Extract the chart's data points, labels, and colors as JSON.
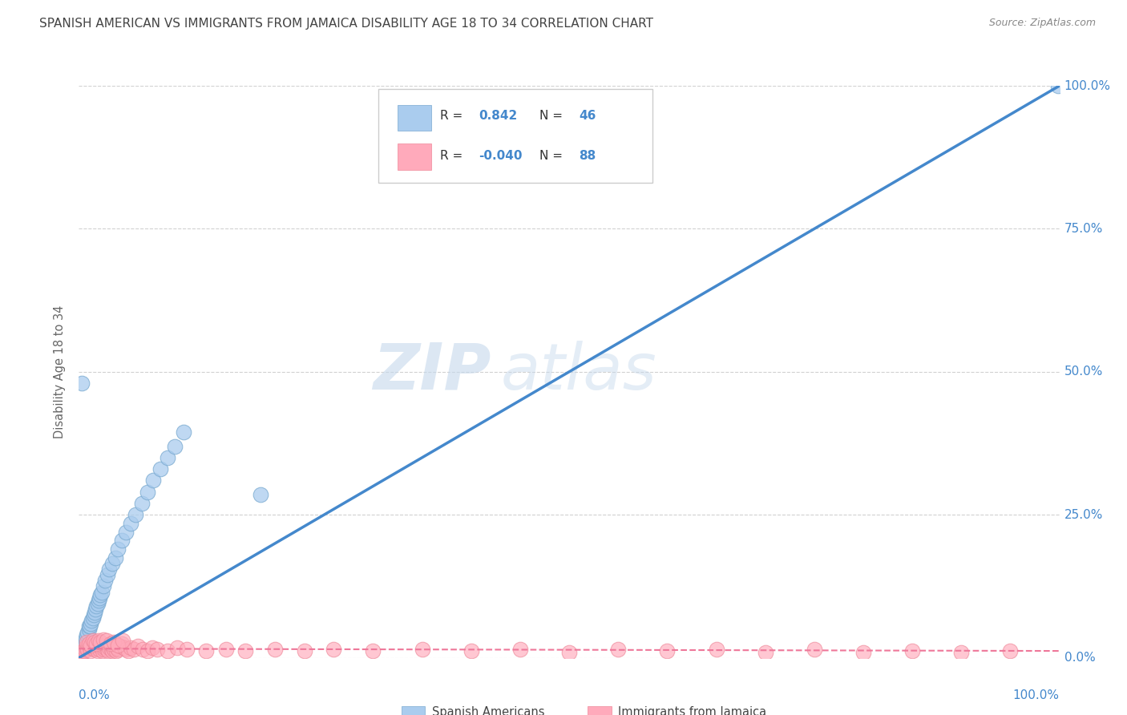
{
  "title": "SPANISH AMERICAN VS IMMIGRANTS FROM JAMAICA DISABILITY AGE 18 TO 34 CORRELATION CHART",
  "source": "Source: ZipAtlas.com",
  "ylabel": "Disability Age 18 to 34",
  "ytick_labels": [
    "0.0%",
    "25.0%",
    "50.0%",
    "75.0%",
    "100.0%"
  ],
  "ytick_values": [
    0.0,
    0.25,
    0.5,
    0.75,
    1.0
  ],
  "watermark_zip": "ZIP",
  "watermark_atlas": "atlas",
  "legend_r1_text": "R = ",
  "legend_r1_val": "0.842",
  "legend_n1_text": "N = ",
  "legend_n1_val": "46",
  "legend_r2_text": "R = ",
  "legend_r2_val": "-0.040",
  "legend_n2_text": "N = ",
  "legend_n2_val": "88",
  "blue_fill": "#AACCEE",
  "blue_edge": "#7AAAD0",
  "pink_fill": "#FFAABB",
  "pink_edge": "#EE8899",
  "blue_line_color": "#4488CC",
  "pink_line_color": "#EE7799",
  "axis_label_color": "#4488CC",
  "title_color": "#444444",
  "source_color": "#888888",
  "grid_color": "#CCCCCC",
  "background_color": "#FFFFFF",
  "legend_text_dark": "#333333",
  "legend_text_blue": "#4488CC",
  "blue_scatter_x": [
    0.002,
    0.003,
    0.004,
    0.005,
    0.005,
    0.006,
    0.007,
    0.007,
    0.008,
    0.009,
    0.01,
    0.01,
    0.011,
    0.012,
    0.013,
    0.014,
    0.015,
    0.016,
    0.017,
    0.018,
    0.019,
    0.02,
    0.021,
    0.022,
    0.023,
    0.025,
    0.027,
    0.029,
    0.031,
    0.034,
    0.037,
    0.04,
    0.044,
    0.048,
    0.053,
    0.058,
    0.064,
    0.07,
    0.076,
    0.083,
    0.09,
    0.098,
    0.107,
    0.185,
    0.003,
    0.999
  ],
  "blue_scatter_y": [
    0.005,
    0.01,
    0.015,
    0.02,
    0.025,
    0.025,
    0.03,
    0.035,
    0.04,
    0.045,
    0.05,
    0.055,
    0.055,
    0.06,
    0.065,
    0.07,
    0.075,
    0.08,
    0.085,
    0.09,
    0.095,
    0.1,
    0.105,
    0.11,
    0.115,
    0.125,
    0.135,
    0.145,
    0.155,
    0.165,
    0.175,
    0.19,
    0.205,
    0.22,
    0.235,
    0.25,
    0.27,
    0.29,
    0.31,
    0.33,
    0.35,
    0.37,
    0.395,
    0.285,
    0.48,
    1.0
  ],
  "pink_scatter_x": [
    0.002,
    0.003,
    0.004,
    0.005,
    0.006,
    0.007,
    0.008,
    0.009,
    0.01,
    0.011,
    0.012,
    0.013,
    0.014,
    0.015,
    0.016,
    0.017,
    0.018,
    0.019,
    0.02,
    0.021,
    0.022,
    0.023,
    0.024,
    0.025,
    0.026,
    0.027,
    0.028,
    0.029,
    0.03,
    0.031,
    0.032,
    0.033,
    0.034,
    0.035,
    0.036,
    0.037,
    0.038,
    0.039,
    0.04,
    0.042,
    0.044,
    0.046,
    0.048,
    0.05,
    0.053,
    0.056,
    0.06,
    0.065,
    0.07,
    0.075,
    0.08,
    0.09,
    0.1,
    0.11,
    0.13,
    0.15,
    0.17,
    0.2,
    0.23,
    0.26,
    0.3,
    0.35,
    0.4,
    0.45,
    0.5,
    0.55,
    0.6,
    0.65,
    0.7,
    0.75,
    0.8,
    0.85,
    0.9,
    0.95,
    0.008,
    0.01,
    0.012,
    0.014,
    0.016,
    0.018,
    0.02,
    0.022,
    0.025,
    0.028,
    0.032,
    0.036,
    0.04,
    0.045
  ],
  "pink_scatter_y": [
    0.005,
    0.008,
    0.01,
    0.012,
    0.015,
    0.018,
    0.02,
    0.015,
    0.022,
    0.018,
    0.012,
    0.02,
    0.016,
    0.022,
    0.015,
    0.018,
    0.025,
    0.012,
    0.02,
    0.015,
    0.022,
    0.018,
    0.012,
    0.02,
    0.015,
    0.018,
    0.022,
    0.015,
    0.012,
    0.018,
    0.025,
    0.015,
    0.012,
    0.018,
    0.015,
    0.02,
    0.012,
    0.018,
    0.015,
    0.02,
    0.025,
    0.018,
    0.015,
    0.012,
    0.018,
    0.015,
    0.02,
    0.015,
    0.012,
    0.018,
    0.015,
    0.012,
    0.018,
    0.015,
    0.012,
    0.015,
    0.012,
    0.015,
    0.012,
    0.015,
    0.012,
    0.015,
    0.012,
    0.015,
    0.01,
    0.015,
    0.012,
    0.015,
    0.01,
    0.015,
    0.01,
    0.012,
    0.01,
    0.012,
    0.028,
    0.025,
    0.022,
    0.03,
    0.028,
    0.025,
    0.03,
    0.028,
    0.032,
    0.03,
    0.025,
    0.028,
    0.022,
    0.03
  ],
  "blue_line_x": [
    0.0,
    1.0
  ],
  "blue_line_y": [
    0.0,
    1.0
  ],
  "pink_line_x": [
    0.0,
    1.0
  ],
  "pink_line_y": [
    0.016,
    0.012
  ],
  "xlim": [
    0.0,
    1.0
  ],
  "ylim": [
    0.0,
    1.0
  ],
  "legend_label_blue": "Spanish Americans",
  "legend_label_pink": "Immigrants from Jamaica"
}
